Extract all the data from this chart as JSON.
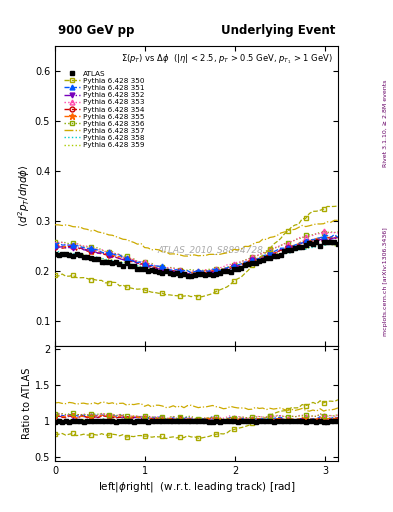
{
  "title_left": "900 GeV pp",
  "title_right": "Underlying Event",
  "watermark": "ATLAS_2010_S8894728",
  "ylabel_main": "$\\langle d^2 p_T / d\\eta d\\phi \\rangle$",
  "ylabel_ratio": "Ratio to ATLAS",
  "xlabel": "left|$\\phi$right|  (w.r.t. leading track) [rad]",
  "right_label_top": "Rivet 3.1.10, ≥ 2.8M events",
  "right_label_bot": "mcplots.cern.ch [arXiv:1306.3436]",
  "xlim": [
    0,
    3.14159
  ],
  "ylim_main": [
    0.05,
    0.65
  ],
  "ylim_ratio": [
    0.45,
    2.05
  ],
  "yticks_main": [
    0.1,
    0.2,
    0.3,
    0.4,
    0.5,
    0.6
  ],
  "yticks_ratio": [
    0.5,
    1.0,
    1.5,
    2.0
  ],
  "background_color": "#ffffff",
  "series": [
    {
      "label": "ATLAS",
      "color": "#000000",
      "linestyle": "none",
      "marker": "s",
      "markersize": 3.5,
      "fillstyle": "full",
      "is_data": true,
      "base_val": 0.232,
      "min_val": 0.192,
      "rise_val": 0.258
    },
    {
      "label": "Pythia 6.428 350",
      "color": "#aaaa00",
      "linestyle": "--",
      "marker": "s",
      "markersize": 3.5,
      "fillstyle": "none",
      "is_data": false,
      "base_val": 0.19,
      "min_val": 0.148,
      "rise_val": 0.33
    },
    {
      "label": "Pythia 6.428 351",
      "color": "#0055ff",
      "linestyle": "--",
      "marker": "^",
      "markersize": 3.5,
      "fillstyle": "full",
      "is_data": false,
      "base_val": 0.252,
      "min_val": 0.198,
      "rise_val": 0.268
    },
    {
      "label": "Pythia 6.428 352",
      "color": "#7700bb",
      "linestyle": "-.",
      "marker": "v",
      "markersize": 3.5,
      "fillstyle": "full",
      "is_data": false,
      "base_val": 0.248,
      "min_val": 0.195,
      "rise_val": 0.264
    },
    {
      "label": "Pythia 6.428 353",
      "color": "#ff44aa",
      "linestyle": ":",
      "marker": "^",
      "markersize": 3.5,
      "fillstyle": "none",
      "is_data": false,
      "base_val": 0.255,
      "min_val": 0.2,
      "rise_val": 0.278
    },
    {
      "label": "Pythia 6.428 354",
      "color": "#cc0000",
      "linestyle": "--",
      "marker": "o",
      "markersize": 3.5,
      "fillstyle": "none",
      "is_data": false,
      "base_val": 0.248,
      "min_val": 0.195,
      "rise_val": 0.265
    },
    {
      "label": "Pythia 6.428 355",
      "color": "#ff6600",
      "linestyle": "--",
      "marker": "*",
      "markersize": 4.5,
      "fillstyle": "full",
      "is_data": false,
      "base_val": 0.25,
      "min_val": 0.197,
      "rise_val": 0.267
    },
    {
      "label": "Pythia 6.428 356",
      "color": "#88aa00",
      "linestyle": ":",
      "marker": "s",
      "markersize": 3.5,
      "fillstyle": "none",
      "is_data": false,
      "base_val": 0.256,
      "min_val": 0.2,
      "rise_val": 0.278
    },
    {
      "label": "Pythia 6.428 357",
      "color": "#ccaa00",
      "linestyle": "-.",
      "marker": "none",
      "markersize": 0,
      "fillstyle": "full",
      "is_data": false,
      "base_val": 0.292,
      "min_val": 0.23,
      "rise_val": 0.298
    },
    {
      "label": "Pythia 6.428 358",
      "color": "#00cccc",
      "linestyle": ":",
      "marker": "none",
      "markersize": 0,
      "fillstyle": "full",
      "is_data": false,
      "base_val": 0.235,
      "min_val": 0.193,
      "rise_val": 0.252
    },
    {
      "label": "Pythia 6.428 359",
      "color": "#aacc00",
      "linestyle": ":",
      "marker": "none",
      "markersize": 0,
      "fillstyle": "full",
      "is_data": false,
      "base_val": 0.236,
      "min_val": 0.194,
      "rise_val": 0.253
    }
  ]
}
